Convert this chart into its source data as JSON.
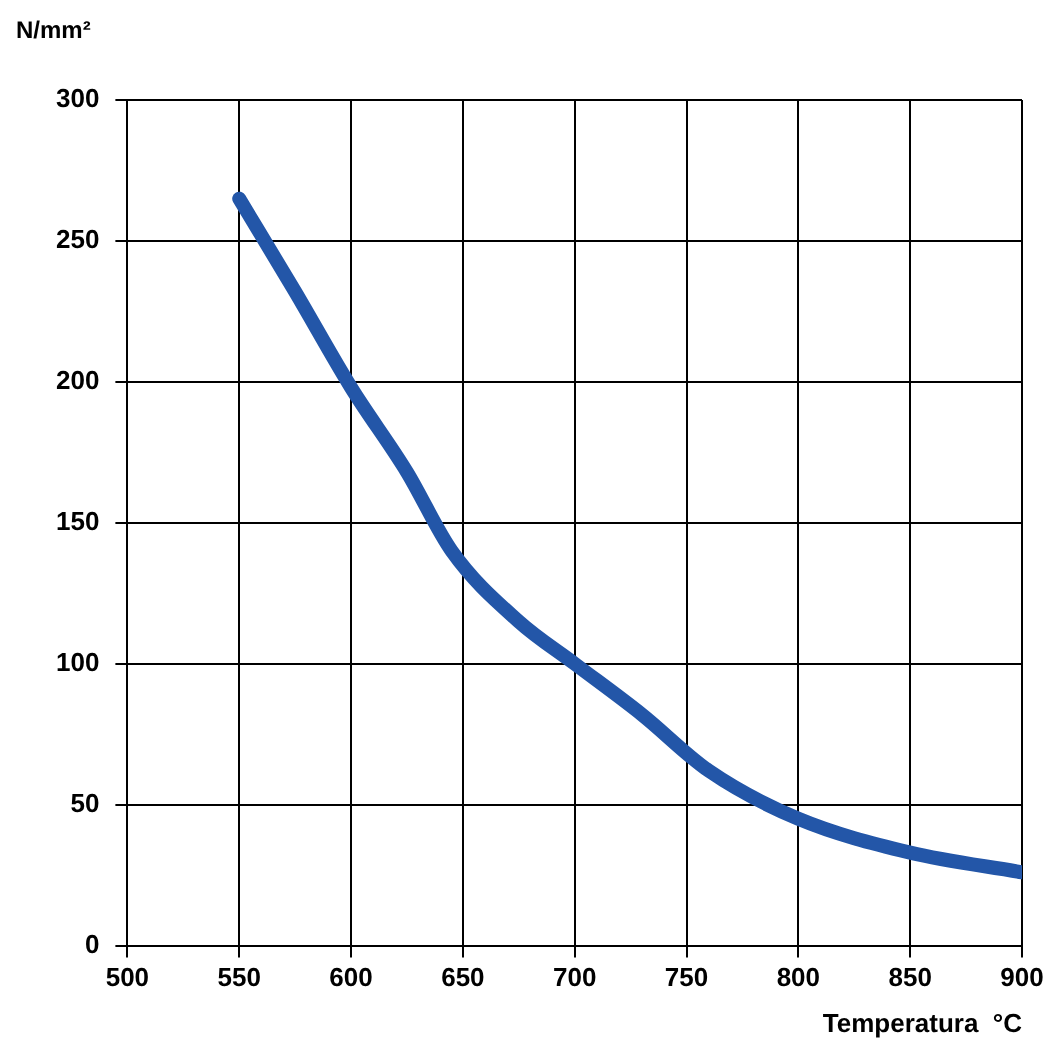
{
  "chart_data": {
    "type": "line",
    "xlabel": "Temperatura  °C",
    "ylabel": "N/mm²",
    "x": [
      550,
      575,
      600,
      625,
      645,
      675,
      700,
      730,
      760,
      800,
      850,
      900
    ],
    "series": [
      {
        "color": "#2356a8",
        "values": [
          265,
          232,
          198,
          168,
          140,
          115,
          100,
          82,
          62,
          45,
          33,
          26
        ]
      }
    ],
    "xlim": [
      500,
      900
    ],
    "xticks": [
      500,
      550,
      600,
      650,
      700,
      750,
      800,
      850,
      900
    ],
    "ylim": [
      0,
      300
    ],
    "yticks": [
      0,
      50,
      100,
      150,
      200,
      250,
      300
    ],
    "grid": true,
    "legend": false,
    "marker": "none",
    "line_style": "solid"
  }
}
